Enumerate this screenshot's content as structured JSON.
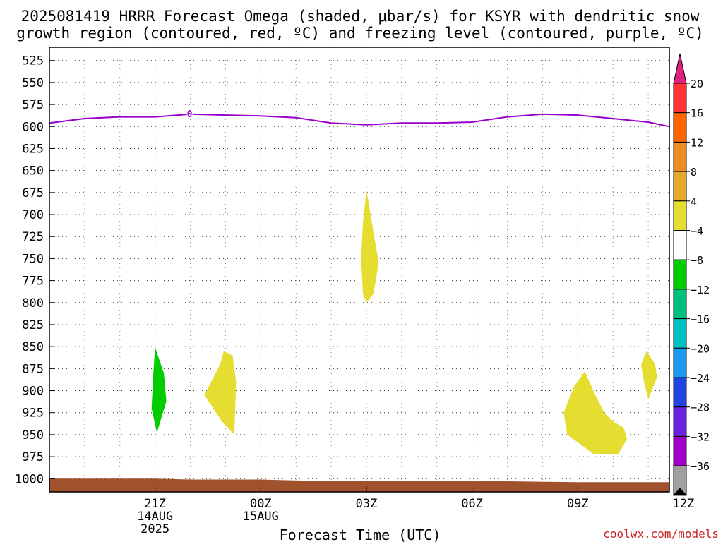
{
  "chart_data": {
    "type": "contour",
    "title_line1": "2025081419 HRRR Forecast Omega (shaded, μbar/s) for KSYR with dendritic snow",
    "title_line2": "growth region (contoured, red, ºC) and freezing level (contoured, purple, ºC)",
    "xlabel": "Forecast Time (UTC)",
    "credit": "coolwx.com/models",
    "x_range_hours": [
      -4,
      13
    ],
    "x_ticks": [
      {
        "hour": 21,
        "label": "21Z",
        "sub1": "14AUG",
        "sub2": "2025"
      },
      {
        "hour": 24,
        "label": "00Z",
        "sub1": "15AUG",
        "sub2": ""
      },
      {
        "hour": 27,
        "label": "03Z",
        "sub1": "",
        "sub2": ""
      },
      {
        "hour": 30,
        "label": "06Z",
        "sub1": "",
        "sub2": ""
      },
      {
        "hour": 33,
        "label": "09Z",
        "sub1": "",
        "sub2": ""
      },
      {
        "hour": 36,
        "label": "12Z",
        "sub1": "",
        "sub2": ""
      }
    ],
    "x_start_hour": 18.0,
    "x_end_hour": 35.6,
    "y_ticks_hpa": [
      525,
      550,
      575,
      600,
      625,
      650,
      675,
      700,
      725,
      750,
      775,
      800,
      825,
      850,
      875,
      900,
      925,
      950,
      975,
      1000
    ],
    "y_top_hpa": 510,
    "y_bottom_hpa": 1015,
    "freezing_level": {
      "label": "0",
      "color": "#9900cc",
      "points_hour_hpa": [
        [
          18.0,
          596
        ],
        [
          19.0,
          591
        ],
        [
          20.0,
          589
        ],
        [
          21.0,
          589
        ],
        [
          22.0,
          586
        ],
        [
          23.0,
          587
        ],
        [
          24.0,
          588
        ],
        [
          25.0,
          590
        ],
        [
          26.0,
          596
        ],
        [
          27.0,
          598
        ],
        [
          28.0,
          596
        ],
        [
          29.0,
          596
        ],
        [
          30.0,
          595
        ],
        [
          31.0,
          589
        ],
        [
          32.0,
          586
        ],
        [
          33.0,
          587
        ],
        [
          34.0,
          591
        ],
        [
          35.0,
          595
        ],
        [
          36.0,
          600
        ],
        [
          37.0,
          599
        ],
        [
          37.5,
          598
        ]
      ],
      "label_at_hour": 21.98
    },
    "omega_regions": [
      {
        "value_class": "-4 to -8",
        "color": "#00cc00",
        "points_hour_hpa": [
          [
            21.0,
            851
          ],
          [
            21.25,
            880
          ],
          [
            21.32,
            912
          ],
          [
            21.05,
            948
          ],
          [
            20.9,
            920
          ],
          [
            20.95,
            880
          ]
        ]
      },
      {
        "value_class": "4 to 8",
        "color": "#e5dd30",
        "points_hour_hpa": [
          [
            22.4,
            905
          ],
          [
            22.85,
            870
          ],
          [
            22.95,
            855
          ],
          [
            23.2,
            860
          ],
          [
            23.3,
            890
          ],
          [
            23.25,
            950
          ],
          [
            22.9,
            935
          ]
        ]
      },
      {
        "value_class": "4 to 8",
        "color": "#e5dd30",
        "points_hour_hpa": [
          [
            27.0,
            672
          ],
          [
            27.2,
            720
          ],
          [
            27.35,
            755
          ],
          [
            27.2,
            790
          ],
          [
            27.0,
            800
          ],
          [
            26.9,
            790
          ],
          [
            26.85,
            750
          ],
          [
            26.9,
            710
          ]
        ]
      },
      {
        "value_class": "4 to 8",
        "color": "#e5dd30",
        "points_hour_hpa": [
          [
            32.6,
            925
          ],
          [
            32.9,
            895
          ],
          [
            33.2,
            878
          ],
          [
            33.5,
            905
          ],
          [
            33.75,
            925
          ],
          [
            34.0,
            935
          ],
          [
            34.3,
            942
          ],
          [
            34.4,
            955
          ],
          [
            34.15,
            972
          ],
          [
            33.45,
            972
          ],
          [
            32.7,
            950
          ]
        ]
      },
      {
        "value_class": "4 to 8",
        "color": "#e5dd30",
        "points_hour_hpa": [
          [
            34.95,
            855
          ],
          [
            35.2,
            870
          ],
          [
            35.25,
            885
          ],
          [
            35.0,
            910
          ],
          [
            34.85,
            885
          ],
          [
            34.8,
            870
          ]
        ]
      }
    ],
    "terrain": {
      "color": "#a0522d",
      "points_hour_hpa": [
        [
          18.0,
          1000
        ],
        [
          21.0,
          1000
        ],
        [
          22.0,
          1001
        ],
        [
          24.0,
          1001
        ],
        [
          26.0,
          1003
        ],
        [
          28.0,
          1003
        ],
        [
          31.0,
          1003
        ],
        [
          33.0,
          1004
        ],
        [
          35.6,
          1004
        ]
      ]
    },
    "colorbar": {
      "labels": [
        "20",
        "16",
        "12",
        "8",
        "4",
        "−4",
        "−8",
        "−12",
        "−16",
        "−20",
        "−24",
        "−28",
        "−32",
        "−36"
      ],
      "colors": [
        "#ff3333",
        "#ff6600",
        "#ee8c22",
        "#e5a82a",
        "#e5dd30",
        "#ffffff",
        "#00cc00",
        "#00c080",
        "#00bfbf",
        "#1a9aee",
        "#2244e0",
        "#6a22e0",
        "#a000c8",
        "#a0a0a0"
      ],
      "top_arrow_color": "#e0207a",
      "bottom_arrow_color": "#000000"
    }
  }
}
